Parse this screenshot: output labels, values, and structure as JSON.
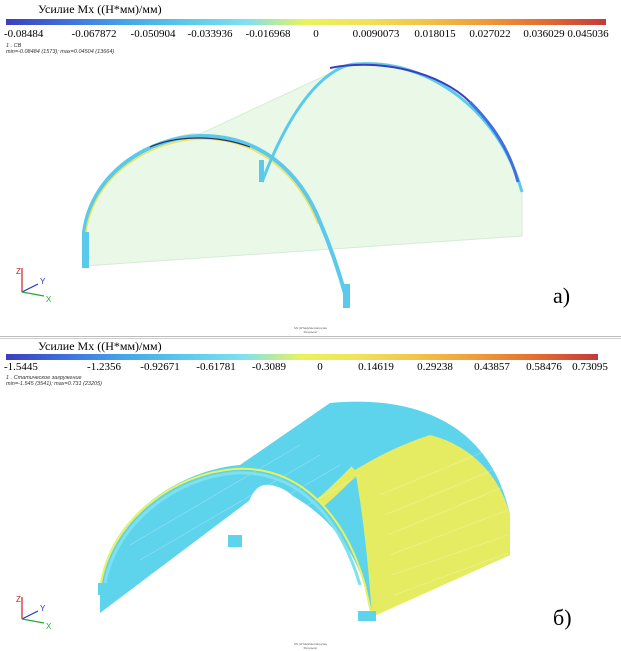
{
  "panels": [
    {
      "legend_title": "Усилие Mx ((Н*мм)/мм)",
      "ticks": [
        "-0.08484",
        "-0.067872",
        "-0.050904",
        "-0.033936",
        "-0.016968",
        "0",
        "0.0090073",
        "0.018015",
        "0.027022",
        "0.036029",
        "0.045036"
      ],
      "case_line": "1 . СВ",
      "minmax_line": "min=-0.08484 (1573); max=0.04504 (13664)",
      "letter": "а)",
      "footer_line1": "Mx (Н*мм)/мм Нагрузка",
      "footer_line2": "Результат"
    },
    {
      "legend_title": "Усилие Mx ((Н*мм)/мм)",
      "ticks": [
        "-1.5445",
        "-1.2356",
        "-0.92671",
        "-0.61781",
        "-0.3089",
        "0",
        "0.14619",
        "0.29238",
        "0.43857",
        "0.58476",
        "0.73095"
      ],
      "case_line": "1 . Статическое загружение",
      "minmax_line": "min=-1.545 (3541); max=0.731 (23205)",
      "letter": "б)",
      "footer_line1": "Mx (Н*мм)/мм Нагрузка",
      "footer_line2": "Результат"
    }
  ],
  "axes": {
    "z": "Z",
    "y": "Y",
    "x": "X"
  },
  "colors": {
    "scale": [
      "#3b3fbf",
      "#3f6fdd",
      "#45a5e8",
      "#5bc9ec",
      "#7fe0ef",
      "#e9f35a",
      "#f0e25a",
      "#f2c247",
      "#ee9a3a",
      "#e26b32",
      "#c33a3a"
    ],
    "neg_edge": "#3f6fdd",
    "pos_edge": "#f0e25a",
    "shell_a": "#eaf8e8",
    "shell_b_cyan": "#5ed3ec",
    "shell_b_yellow": "#e6ec62"
  }
}
